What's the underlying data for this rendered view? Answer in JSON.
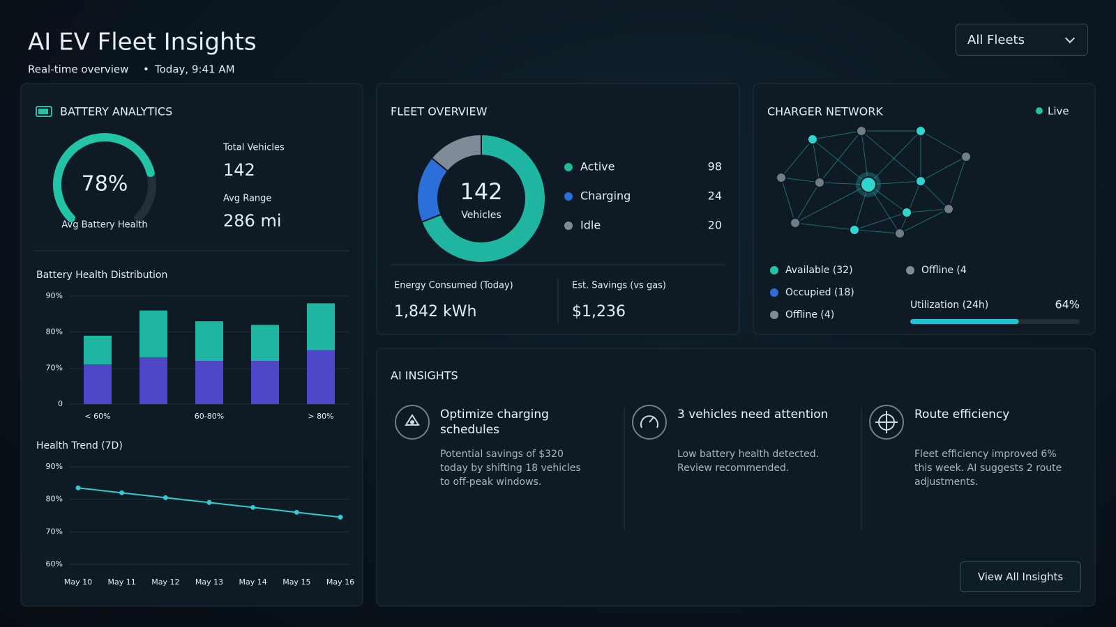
{
  "header": {
    "title": "AI EV Fleet Insights",
    "subtitle": "Real-time overview",
    "timestamp": "Today, 9:41 AM",
    "fleet_filter": "All Fleets"
  },
  "battery": {
    "title": "BATTERY ANALYTICS",
    "health": {
      "value": 78,
      "label": "78%",
      "caption": "Avg Battery Health",
      "color": "#22c3a6"
    },
    "total_vehicles": {
      "label": "Total Vehicles",
      "value": 142
    },
    "avg_range": {
      "label": "Avg Range",
      "value": "286 mi"
    },
    "distribution": {
      "type": "bar",
      "title": "Battery Health Distribution",
      "categories": [
        "< 60%",
        null,
        "60-80%",
        null,
        "> 80%"
      ],
      "series": [
        {
          "color": "#4f46c8",
          "values": [
            71,
            73,
            72,
            72,
            75
          ]
        },
        {
          "color": "#1fb5a0",
          "values": [
            8,
            13,
            11,
            10,
            13
          ]
        }
      ],
      "yticks": [
        0,
        {
          "value": 70,
          "label": "70%"
        },
        {
          "value": 80,
          "label": "80%"
        },
        {
          "value": 90,
          "label": "90%"
        }
      ],
      "stacked": true,
      "grid": true
    },
    "trend": {
      "type": "line",
      "title": "Health Trend (7D)",
      "categories": [
        "May 10",
        "May 11",
        "May 12",
        "May 13",
        "May 14",
        "May 15",
        "May 16"
      ],
      "values": [
        83.5,
        82,
        80.5,
        79,
        77.5,
        76,
        74.5
      ],
      "color": "#35c9d0",
      "ylim": [
        60,
        90
      ],
      "yticks": [
        {
          "value": 60,
          "label": "60%"
        },
        {
          "value": 70,
          "label": "70%"
        },
        {
          "value": 80,
          "label": "80%"
        },
        {
          "value": 90,
          "label": "90%"
        }
      ],
      "grid": true
    }
  },
  "fleet": {
    "title": "FLEET OVERVIEW",
    "total": {
      "value": 142,
      "label": "Vehicles"
    },
    "segments": [
      {
        "name": "Active",
        "value": 98,
        "color": "#1fb5a0"
      },
      {
        "name": "Charging",
        "value": 24,
        "color": "#2d6fd8"
      },
      {
        "name": "Idle",
        "value": 20,
        "color": "#7f8b97"
      }
    ],
    "energy": {
      "label": "Energy Consumed (Today)",
      "value": "1,842 kWh"
    },
    "savings": {
      "label": "Est. Savings (vs gas)",
      "value": "$1,236"
    }
  },
  "chargers": {
    "title": "CHARGER NETWORK",
    "status": "Live",
    "legend": [
      {
        "label": "Available (32)",
        "color": "#22c3a6"
      },
      {
        "label": "Offline (4",
        "color": "#7f8b97"
      },
      {
        "label": "Occupied (18)",
        "color": "#2d6fd8"
      },
      {
        "label": "Offline (4)",
        "color": "#7f8b97"
      }
    ],
    "utilization": {
      "label": "Utilization (24h)",
      "value": 64,
      "value_label": "64%",
      "color": "#22c3d0"
    }
  },
  "insights": {
    "title": "AI INSIGHTS",
    "items": [
      {
        "title": "Optimize charging schedules",
        "body": "Potential savings of $320 today by shifting 18 vehicles to off-peak windows."
      },
      {
        "title": "3 vehicles need attention",
        "body": "Low battery health detected. Review recommended."
      },
      {
        "title": "Route efficiency",
        "body": "Fleet efficiency improved 6% this week. AI suggests 2 route adjustments."
      }
    ],
    "button": "View All Insights"
  }
}
